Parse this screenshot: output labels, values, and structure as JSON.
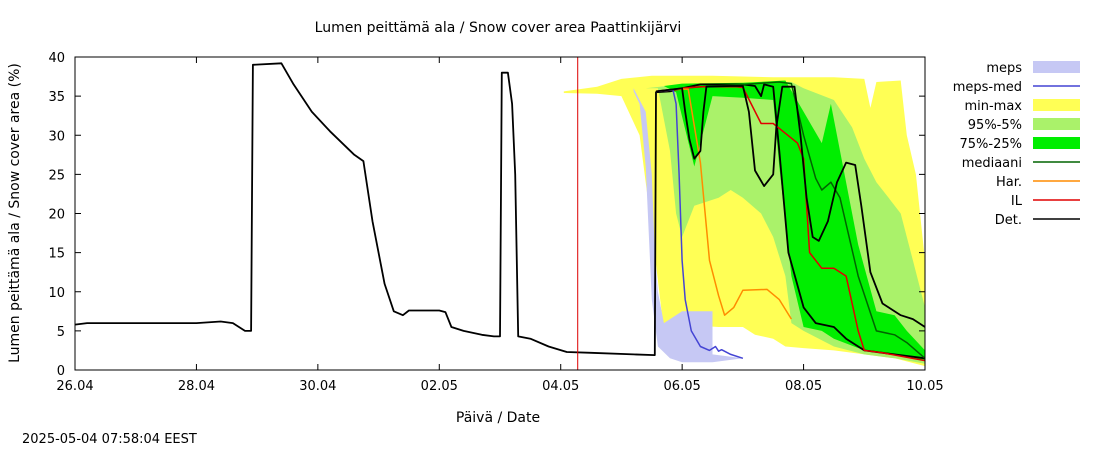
{
  "chart_data": {
    "type": "area",
    "title": "Lumen peittämä ala / Snow cover area Paattinkijärvi",
    "xlabel": "Päivä / Date",
    "ylabel": "Lumen peittämä ala / Snow cover area (%)",
    "timestamp": "2025-05-04 07:58:04 EEST",
    "xlim": [
      0,
      14
    ],
    "ylim": [
      0,
      40
    ],
    "x_unit": "days since 26.04",
    "xticks": [
      {
        "x": 0,
        "label": "26.04"
      },
      {
        "x": 2,
        "label": "28.04"
      },
      {
        "x": 4,
        "label": "30.04"
      },
      {
        "x": 6,
        "label": "02.05"
      },
      {
        "x": 8,
        "label": "04.05"
      },
      {
        "x": 10,
        "label": "06.05"
      },
      {
        "x": 12,
        "label": "08.05"
      },
      {
        "x": 14,
        "label": "10.05"
      }
    ],
    "yticks": [
      0,
      5,
      10,
      15,
      20,
      25,
      30,
      35,
      40
    ],
    "forecast_start_x": 8.28,
    "colors": {
      "meps": "#c6c8f4",
      "meps_med": "#4444d4",
      "min_max": "#ffff55",
      "p95_5": "#aaf26a",
      "p75_25": "#00ee00",
      "mediaani": "#006400",
      "har": "#ff8c00",
      "il": "#e00000",
      "det": "#000000",
      "forecast_line": "#dd0000"
    },
    "legend": [
      {
        "key": "meps",
        "label": "meps",
        "kind": "band"
      },
      {
        "key": "meps_med",
        "label": "meps-med",
        "kind": "line"
      },
      {
        "key": "min_max",
        "label": "min-max",
        "kind": "band"
      },
      {
        "key": "p95_5",
        "label": "95%-5%",
        "kind": "band"
      },
      {
        "key": "p75_25",
        "label": "75%-25%",
        "kind": "band"
      },
      {
        "key": "mediaani",
        "label": "mediaani",
        "kind": "line"
      },
      {
        "key": "har",
        "label": "Har.",
        "kind": "line"
      },
      {
        "key": "il",
        "label": "IL",
        "kind": "line"
      },
      {
        "key": "det",
        "label": "Det.",
        "kind": "line"
      }
    ],
    "bands": [
      {
        "key": "min_max",
        "upper": [
          [
            8.05,
            35.6
          ],
          [
            8.6,
            36.2
          ],
          [
            9.0,
            37.2
          ],
          [
            9.5,
            37.6
          ],
          [
            10.5,
            37.6
          ],
          [
            11.5,
            37.4
          ],
          [
            12.5,
            37.4
          ],
          [
            13.0,
            37.2
          ],
          [
            13.1,
            33.5
          ],
          [
            13.2,
            36.8
          ],
          [
            13.6,
            37.0
          ],
          [
            13.7,
            30
          ],
          [
            13.85,
            25
          ],
          [
            14,
            14
          ]
        ],
        "lower": [
          [
            14,
            0.5
          ],
          [
            13.5,
            1.5
          ],
          [
            13.0,
            2.0
          ],
          [
            12.5,
            2.5
          ],
          [
            12.0,
            2.8
          ],
          [
            11.7,
            3.0
          ],
          [
            11.5,
            4.0
          ],
          [
            11.2,
            4.5
          ],
          [
            11.0,
            5.5
          ],
          [
            10.6,
            5.5
          ],
          [
            10.4,
            5.6
          ],
          [
            10.2,
            5.4
          ],
          [
            10.0,
            4.5
          ],
          [
            9.85,
            1.8
          ],
          [
            9.7,
            5.0
          ],
          [
            9.5,
            18
          ],
          [
            9.3,
            30
          ],
          [
            9.0,
            35.0
          ],
          [
            8.6,
            35.3
          ],
          [
            8.05,
            35.4
          ]
        ]
      },
      {
        "key": "p95_5",
        "upper": [
          [
            9.4,
            36.0
          ],
          [
            10,
            36.5
          ],
          [
            11,
            36.6
          ],
          [
            11.8,
            36.8
          ],
          [
            12.0,
            36.0
          ],
          [
            12.5,
            34.5
          ],
          [
            12.8,
            31
          ],
          [
            13.0,
            27
          ],
          [
            13.2,
            24
          ],
          [
            13.4,
            22
          ],
          [
            13.6,
            20
          ],
          [
            13.8,
            14
          ],
          [
            14,
            8
          ]
        ],
        "lower": [
          [
            14,
            0.8
          ],
          [
            13.5,
            1.5
          ],
          [
            13.0,
            2.0
          ],
          [
            12.5,
            3.0
          ],
          [
            12.0,
            5.0
          ],
          [
            11.8,
            6.0
          ],
          [
            11.7,
            12
          ],
          [
            11.5,
            17
          ],
          [
            11.3,
            20
          ],
          [
            11.0,
            22
          ],
          [
            10.8,
            23
          ],
          [
            10.6,
            22
          ],
          [
            10.2,
            21
          ],
          [
            10.0,
            17
          ],
          [
            9.9,
            20
          ],
          [
            9.8,
            28
          ],
          [
            9.6,
            36.0
          ]
        ]
      },
      {
        "key": "p75_25",
        "upper": [
          [
            9.7,
            36.3
          ],
          [
            10,
            36.6
          ],
          [
            11,
            36.7
          ],
          [
            11.7,
            37.0
          ],
          [
            12.0,
            33.0
          ],
          [
            12.3,
            29.0
          ],
          [
            12.45,
            34.0
          ],
          [
            12.6,
            28.0
          ],
          [
            12.9,
            16.0
          ],
          [
            13.2,
            7.5
          ],
          [
            13.5,
            7.0
          ],
          [
            13.7,
            5.0
          ],
          [
            14,
            2.5
          ]
        ],
        "lower": [
          [
            14,
            1.2
          ],
          [
            13.5,
            2.0
          ],
          [
            13.0,
            2.5
          ],
          [
            12.5,
            4.0
          ],
          [
            12.3,
            5.0
          ],
          [
            12.0,
            5.5
          ],
          [
            11.8,
            12
          ],
          [
            11.6,
            26
          ],
          [
            11.5,
            34.5
          ],
          [
            11.0,
            34.8
          ],
          [
            10.5,
            35.0
          ],
          [
            10.2,
            26.0
          ],
          [
            9.9,
            35.5
          ]
        ]
      },
      {
        "key": "meps",
        "upper": [
          [
            9.2,
            36.0
          ],
          [
            9.4,
            33
          ],
          [
            9.5,
            25
          ],
          [
            9.55,
            15
          ],
          [
            9.6,
            10
          ],
          [
            9.7,
            6
          ],
          [
            10.0,
            7.5
          ],
          [
            10.5,
            7.5
          ],
          [
            10.5,
            2.0
          ],
          [
            11,
            1.5
          ]
        ],
        "lower": [
          [
            11,
            1.5
          ],
          [
            10.5,
            1.0
          ],
          [
            10,
            1.0
          ],
          [
            9.8,
            1.5
          ],
          [
            9.6,
            3.0
          ],
          [
            9.5,
            9
          ],
          [
            9.4,
            26
          ],
          [
            9.3,
            34
          ],
          [
            9.2,
            35.6
          ]
        ]
      }
    ],
    "series": [
      {
        "key": "det",
        "name": "Det.",
        "width": 1.8,
        "points": [
          [
            0,
            5.8
          ],
          [
            0.2,
            6.0
          ],
          [
            2.0,
            6.0
          ],
          [
            2.4,
            6.2
          ],
          [
            2.6,
            6.0
          ],
          [
            2.8,
            5.0
          ],
          [
            2.9,
            5.0
          ],
          [
            2.93,
            39.0
          ],
          [
            3.4,
            39.2
          ],
          [
            3.6,
            36.5
          ],
          [
            3.9,
            33.0
          ],
          [
            4.2,
            30.5
          ],
          [
            4.6,
            27.5
          ],
          [
            4.75,
            26.7
          ],
          [
            4.9,
            19.0
          ],
          [
            5.1,
            11.0
          ],
          [
            5.25,
            7.5
          ],
          [
            5.4,
            7.0
          ],
          [
            5.5,
            7.6
          ],
          [
            6.0,
            7.6
          ],
          [
            6.1,
            7.4
          ],
          [
            6.2,
            5.5
          ],
          [
            6.4,
            5.0
          ],
          [
            6.7,
            4.5
          ],
          [
            6.9,
            4.3
          ],
          [
            7.0,
            4.3
          ],
          [
            7.03,
            38.0
          ],
          [
            7.13,
            38.0
          ],
          [
            7.2,
            34.0
          ],
          [
            7.25,
            25.0
          ],
          [
            7.3,
            4.3
          ],
          [
            7.5,
            4.0
          ],
          [
            7.8,
            3.0
          ],
          [
            8.1,
            2.3
          ],
          [
            8.5,
            2.2
          ],
          [
            9.2,
            2.0
          ],
          [
            9.55,
            1.9
          ],
          [
            9.57,
            35.5
          ],
          [
            9.8,
            35.6
          ],
          [
            10.0,
            36.0
          ],
          [
            10.3,
            36.5
          ],
          [
            11.0,
            36.5
          ],
          [
            11.2,
            36.3
          ],
          [
            11.3,
            35.0
          ],
          [
            11.35,
            36.5
          ],
          [
            11.5,
            36.2
          ],
          [
            11.6,
            28.0
          ],
          [
            11.75,
            15.0
          ],
          [
            12.0,
            8.0
          ],
          [
            12.2,
            6.0
          ],
          [
            12.5,
            5.5
          ],
          [
            12.7,
            4.0
          ],
          [
            13.0,
            2.5
          ],
          [
            13.5,
            2.0
          ],
          [
            14,
            1.5
          ]
        ]
      },
      {
        "key": "mediaani",
        "name": "mediaani",
        "width": 1.5,
        "points": [
          [
            9.57,
            35.6
          ],
          [
            10,
            36.0
          ],
          [
            10.5,
            36.3
          ],
          [
            11.0,
            36.5
          ],
          [
            11.6,
            36.8
          ],
          [
            11.8,
            36.6
          ],
          [
            12.0,
            30.0
          ],
          [
            12.2,
            24.5
          ],
          [
            12.3,
            23.0
          ],
          [
            12.45,
            24.0
          ],
          [
            12.6,
            22.0
          ],
          [
            12.9,
            12.0
          ],
          [
            13.2,
            5.0
          ],
          [
            13.5,
            4.5
          ],
          [
            13.7,
            3.5
          ],
          [
            14,
            1.5
          ]
        ]
      },
      {
        "key": "il",
        "name": "IL",
        "width": 1.5,
        "points": [
          [
            9.57,
            35.6
          ],
          [
            10,
            36.0
          ],
          [
            10.3,
            36.2
          ],
          [
            10.9,
            36.2
          ],
          [
            11.0,
            36.1
          ],
          [
            11.3,
            31.5
          ],
          [
            11.5,
            31.5
          ],
          [
            11.9,
            29.0
          ],
          [
            12.0,
            27.0
          ],
          [
            12.1,
            15.0
          ],
          [
            12.3,
            13.0
          ],
          [
            12.5,
            13.0
          ],
          [
            12.7,
            12.0
          ],
          [
            12.9,
            5.0
          ],
          [
            13.0,
            2.5
          ],
          [
            13.3,
            2.2
          ],
          [
            14,
            1.2
          ]
        ]
      },
      {
        "key": "har",
        "name": "Har.",
        "width": 1.5,
        "points": [
          [
            9.57,
            35.6
          ],
          [
            10,
            35.9
          ],
          [
            10.1,
            35.9
          ],
          [
            10.3,
            26.5
          ],
          [
            10.45,
            14.0
          ],
          [
            10.6,
            9.5
          ],
          [
            10.7,
            7.0
          ],
          [
            10.85,
            8.0
          ],
          [
            11.0,
            10.2
          ],
          [
            11.4,
            10.3
          ],
          [
            11.6,
            9.0
          ],
          [
            11.8,
            6.5
          ]
        ]
      },
      {
        "key": "meps_med",
        "name": "meps-med",
        "width": 1.5,
        "points": [
          [
            9.57,
            35.6
          ],
          [
            9.85,
            35.8
          ],
          [
            9.9,
            34.0
          ],
          [
            9.95,
            25.0
          ],
          [
            10.0,
            14.0
          ],
          [
            10.05,
            9.0
          ],
          [
            10.15,
            5.0
          ],
          [
            10.3,
            3.0
          ],
          [
            10.45,
            2.5
          ],
          [
            10.55,
            3.0
          ],
          [
            10.6,
            2.4
          ],
          [
            10.65,
            2.6
          ],
          [
            10.8,
            2.0
          ],
          [
            11.0,
            1.5
          ]
        ]
      },
      {
        "key": "det",
        "name": "Det. forecast",
        "width": 1.8,
        "points": [
          [
            9.57,
            35.6
          ],
          [
            10.0,
            36.0
          ],
          [
            10.05,
            33.0
          ],
          [
            10.12,
            29.5
          ],
          [
            10.2,
            27.0
          ],
          [
            10.3,
            28.0
          ],
          [
            10.35,
            33.0
          ],
          [
            10.4,
            36.2
          ],
          [
            10.8,
            36.3
          ],
          [
            11.0,
            36.3
          ],
          [
            11.1,
            33.0
          ],
          [
            11.2,
            25.5
          ],
          [
            11.35,
            23.5
          ],
          [
            11.5,
            25.0
          ],
          [
            11.55,
            31.0
          ],
          [
            11.65,
            36.2
          ],
          [
            11.85,
            36.2
          ],
          [
            11.95,
            30.0
          ],
          [
            12.05,
            22.0
          ],
          [
            12.15,
            17.0
          ],
          [
            12.25,
            16.5
          ],
          [
            12.4,
            19.0
          ],
          [
            12.55,
            24.0
          ],
          [
            12.7,
            26.5
          ],
          [
            12.85,
            26.2
          ],
          [
            12.95,
            21.0
          ],
          [
            13.1,
            12.5
          ],
          [
            13.3,
            8.5
          ],
          [
            13.6,
            7.0
          ],
          [
            13.8,
            6.5
          ],
          [
            14,
            5.5
          ]
        ]
      }
    ]
  }
}
